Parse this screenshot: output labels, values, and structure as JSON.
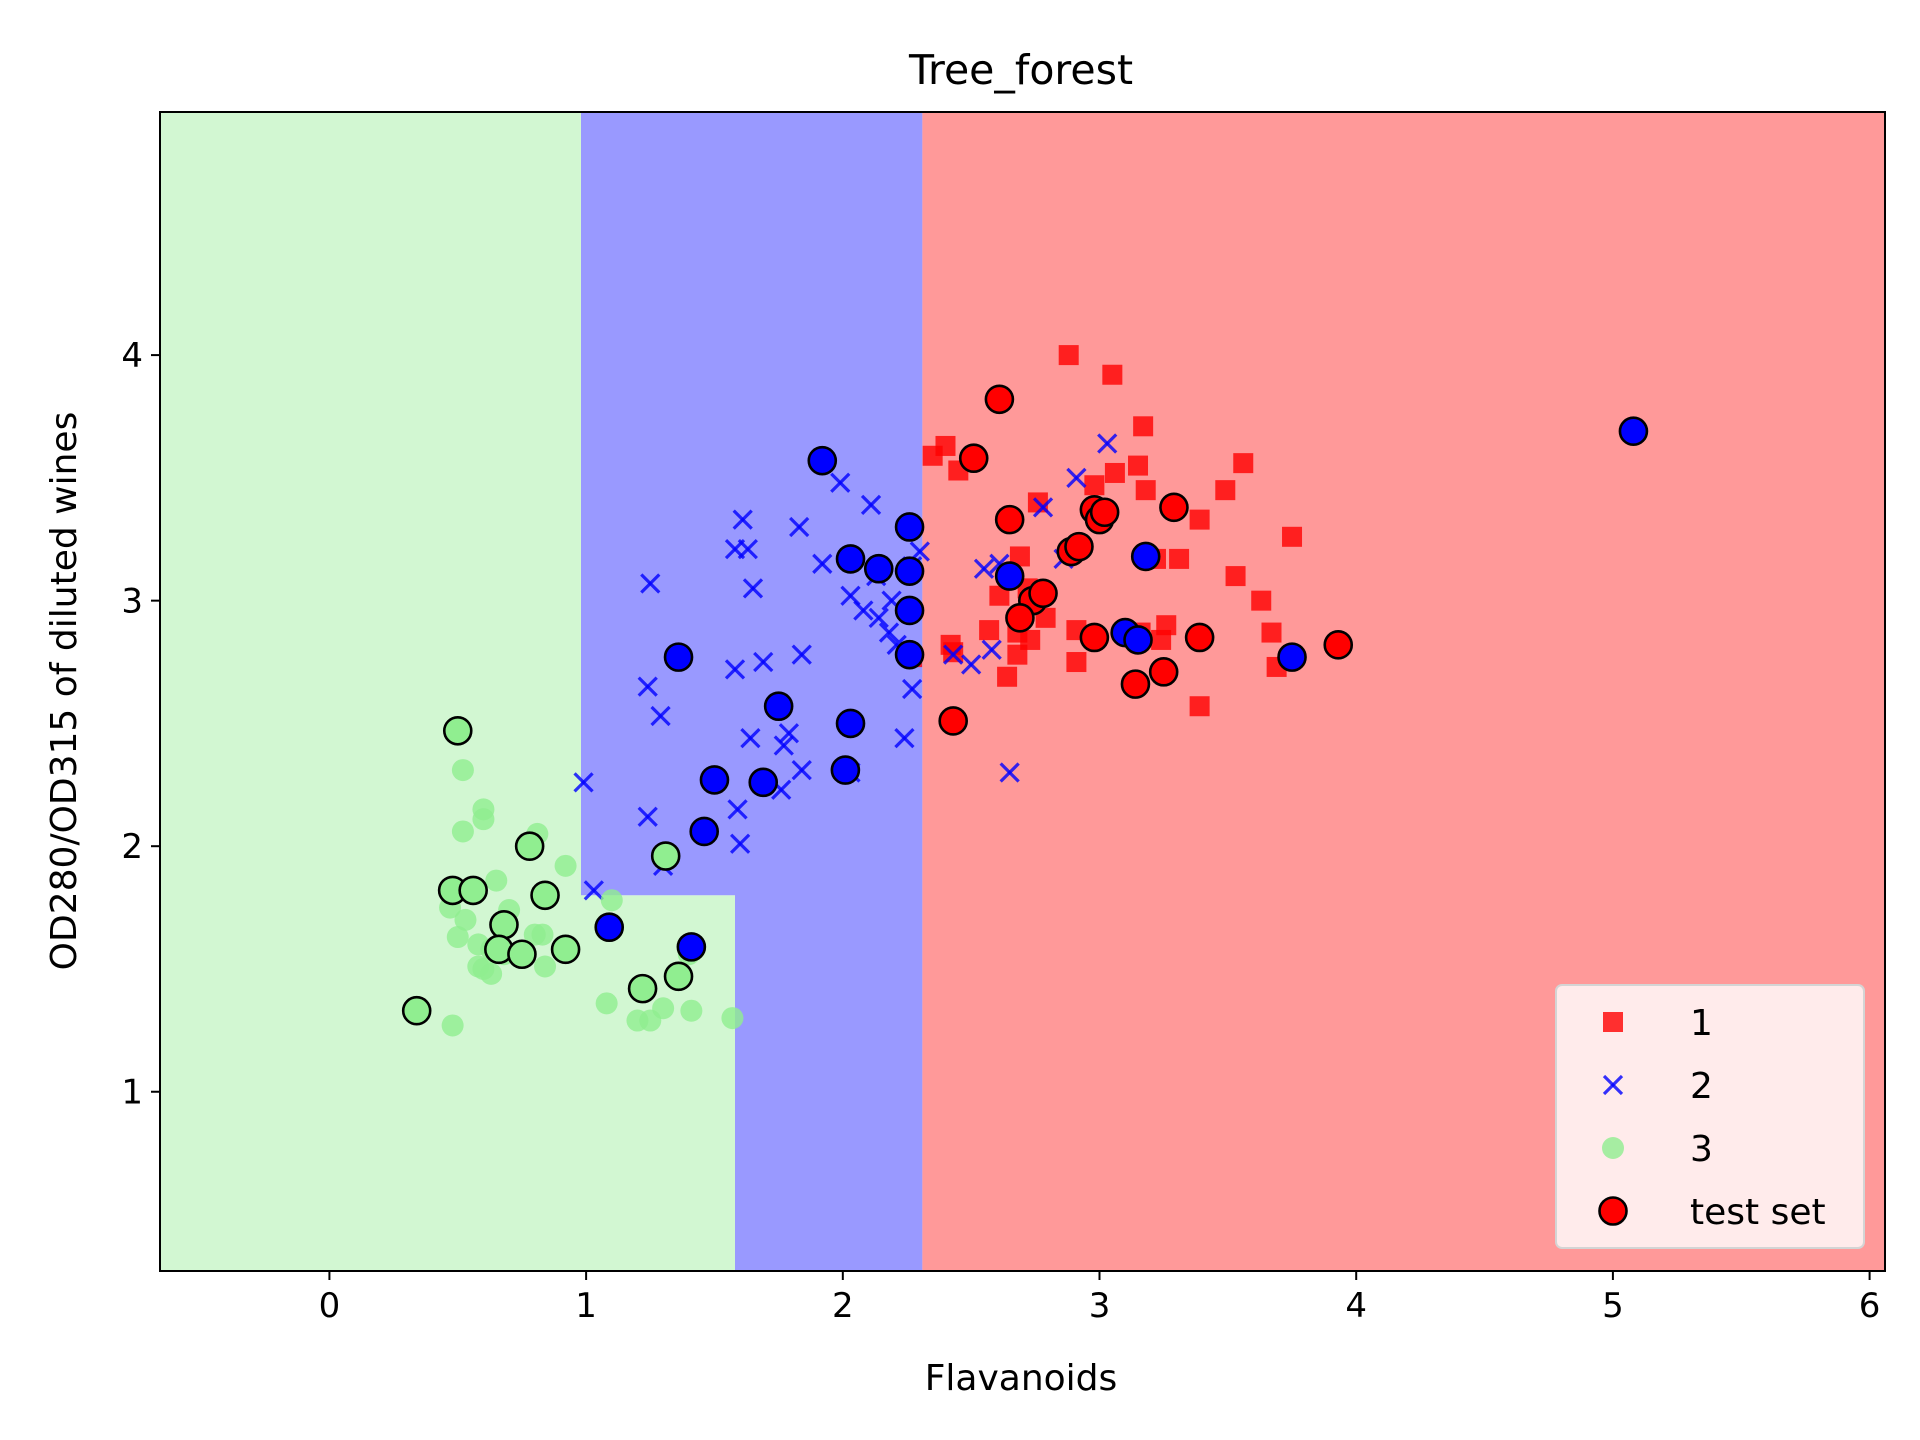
{
  "chart_data": {
    "type": "scatter",
    "title": "Tree_forest",
    "xlabel": "Flavanoids",
    "ylabel": "OD280/OD315 of diluted wines",
    "xlim": [
      -0.66,
      6.06
    ],
    "ylim": [
      0.27,
      4.99
    ],
    "xticks": [
      0,
      1,
      2,
      3,
      4,
      5,
      6
    ],
    "yticks": [
      1,
      2,
      3,
      4
    ],
    "grid": false,
    "legend_position": "bottom-right",
    "colors": {
      "class_1": "#ff0000",
      "class_2": "#0000ff",
      "class_3": "#90ee90",
      "region_1": "#ff9999",
      "region_2": "#9999ff",
      "region_3": "#d2f7d2",
      "test_set": "#ff0000"
    },
    "decision_regions": [
      {
        "class": "3",
        "polygon": [
          [
            -0.66,
            0.27
          ],
          [
            1.58,
            0.27
          ],
          [
            1.58,
            1.8
          ],
          [
            0.98,
            1.8
          ],
          [
            0.98,
            4.99
          ],
          [
            -0.66,
            4.99
          ]
        ]
      },
      {
        "class": "2",
        "polygon": [
          [
            1.58,
            0.27
          ],
          [
            2.31,
            0.27
          ],
          [
            2.31,
            4.99
          ],
          [
            0.98,
            4.99
          ],
          [
            0.98,
            1.8
          ],
          [
            1.58,
            1.8
          ]
        ]
      },
      {
        "class": "1",
        "polygon": [
          [
            2.31,
            0.27
          ],
          [
            6.06,
            0.27
          ],
          [
            6.06,
            4.99
          ],
          [
            2.31,
            4.99
          ]
        ]
      }
    ],
    "series": [
      {
        "name": "1",
        "marker": "square",
        "points": [
          [
            2.88,
            4.0
          ],
          [
            3.05,
            3.92
          ],
          [
            3.17,
            3.71
          ],
          [
            2.35,
            3.59
          ],
          [
            2.4,
            3.63
          ],
          [
            2.45,
            3.53
          ],
          [
            2.98,
            3.47
          ],
          [
            3.15,
            3.55
          ],
          [
            3.18,
            3.45
          ],
          [
            3.06,
            3.52
          ],
          [
            3.56,
            3.56
          ],
          [
            3.49,
            3.45
          ],
          [
            2.76,
            3.4
          ],
          [
            3.39,
            3.33
          ],
          [
            3.75,
            3.26
          ],
          [
            3.22,
            3.17
          ],
          [
            3.31,
            3.17
          ],
          [
            3.53,
            3.1
          ],
          [
            3.63,
            3.0
          ],
          [
            2.69,
            3.18
          ],
          [
            2.72,
            3.05
          ],
          [
            2.61,
            3.02
          ],
          [
            2.57,
            2.88
          ],
          [
            2.68,
            2.87
          ],
          [
            2.73,
            2.84
          ],
          [
            2.79,
            2.93
          ],
          [
            2.42,
            2.82
          ],
          [
            2.43,
            2.79
          ],
          [
            2.68,
            2.78
          ],
          [
            2.91,
            2.88
          ],
          [
            2.91,
            2.75
          ],
          [
            3.16,
            2.87
          ],
          [
            3.26,
            2.9
          ],
          [
            3.24,
            2.84
          ],
          [
            3.67,
            2.87
          ],
          [
            3.69,
            2.73
          ],
          [
            3.39,
            2.57
          ],
          [
            2.27,
            2.77
          ],
          [
            2.64,
            2.69
          ]
        ]
      },
      {
        "name": "2",
        "marker": "x",
        "points": [
          [
            3.03,
            3.64
          ],
          [
            2.91,
            3.5
          ],
          [
            1.99,
            3.48
          ],
          [
            2.11,
            3.39
          ],
          [
            2.78,
            3.38
          ],
          [
            1.61,
            3.33
          ],
          [
            1.58,
            3.21
          ],
          [
            1.63,
            3.21
          ],
          [
            1.83,
            3.3
          ],
          [
            2.3,
            3.2
          ],
          [
            1.92,
            3.15
          ],
          [
            2.27,
            3.14
          ],
          [
            2.55,
            3.13
          ],
          [
            2.61,
            3.15
          ],
          [
            2.86,
            3.17
          ],
          [
            2.13,
            3.1
          ],
          [
            1.25,
            3.07
          ],
          [
            1.65,
            3.05
          ],
          [
            2.19,
            3.0
          ],
          [
            2.03,
            3.02
          ],
          [
            2.08,
            2.96
          ],
          [
            2.14,
            2.93
          ],
          [
            2.18,
            2.87
          ],
          [
            2.21,
            2.82
          ],
          [
            1.84,
            2.78
          ],
          [
            1.69,
            2.75
          ],
          [
            1.58,
            2.72
          ],
          [
            2.43,
            2.78
          ],
          [
            2.5,
            2.74
          ],
          [
            2.58,
            2.8
          ],
          [
            2.99,
            2.85
          ],
          [
            1.24,
            2.65
          ],
          [
            1.29,
            2.53
          ],
          [
            2.27,
            2.64
          ],
          [
            1.64,
            2.44
          ],
          [
            1.79,
            2.46
          ],
          [
            1.77,
            2.41
          ],
          [
            2.24,
            2.44
          ],
          [
            1.84,
            2.31
          ],
          [
            2.03,
            2.3
          ],
          [
            2.65,
            2.3
          ],
          [
            1.76,
            2.23
          ],
          [
            1.59,
            2.15
          ],
          [
            1.24,
            2.12
          ],
          [
            1.6,
            2.01
          ],
          [
            0.99,
            2.26
          ],
          [
            1.03,
            1.82
          ],
          [
            1.3,
            1.92
          ]
        ]
      },
      {
        "name": "3",
        "marker": "circle",
        "points": [
          [
            0.52,
            2.31
          ],
          [
            0.6,
            2.15
          ],
          [
            0.6,
            2.11
          ],
          [
            0.52,
            2.06
          ],
          [
            0.81,
            2.05
          ],
          [
            0.92,
            1.92
          ],
          [
            0.65,
            1.86
          ],
          [
            0.47,
            1.75
          ],
          [
            0.53,
            1.7
          ],
          [
            0.7,
            1.74
          ],
          [
            0.58,
            1.6
          ],
          [
            0.63,
            1.58
          ],
          [
            0.8,
            1.64
          ],
          [
            0.83,
            1.64
          ],
          [
            0.5,
            1.63
          ],
          [
            0.58,
            1.51
          ],
          [
            0.6,
            1.5
          ],
          [
            0.63,
            1.48
          ],
          [
            0.84,
            1.51
          ],
          [
            0.68,
            1.56
          ],
          [
            1.1,
            1.78
          ],
          [
            1.08,
            1.36
          ],
          [
            1.2,
            1.29
          ],
          [
            1.25,
            1.29
          ],
          [
            1.3,
            1.34
          ],
          [
            1.41,
            1.33
          ],
          [
            1.57,
            1.3
          ],
          [
            0.48,
            1.27
          ],
          [
            1.4,
            1.56
          ]
        ]
      },
      {
        "name": "test set",
        "marker": "circle-outlined",
        "points": [
          {
            "x": 2.61,
            "y": 3.82,
            "class": "1"
          },
          {
            "x": 2.51,
            "y": 3.58,
            "class": "1"
          },
          {
            "x": 2.65,
            "y": 3.33,
            "class": "1"
          },
          {
            "x": 2.98,
            "y": 3.37,
            "class": "1"
          },
          {
            "x": 3.0,
            "y": 3.33,
            "class": "1"
          },
          {
            "x": 3.02,
            "y": 3.36,
            "class": "1"
          },
          {
            "x": 3.29,
            "y": 3.38,
            "class": "1"
          },
          {
            "x": 2.89,
            "y": 3.2,
            "class": "1"
          },
          {
            "x": 2.92,
            "y": 3.22,
            "class": "1"
          },
          {
            "x": 2.74,
            "y": 3.0,
            "class": "1"
          },
          {
            "x": 2.78,
            "y": 3.03,
            "class": "1"
          },
          {
            "x": 2.69,
            "y": 2.93,
            "class": "1"
          },
          {
            "x": 2.98,
            "y": 2.85,
            "class": "1"
          },
          {
            "x": 3.39,
            "y": 2.85,
            "class": "1"
          },
          {
            "x": 3.93,
            "y": 2.82,
            "class": "1"
          },
          {
            "x": 3.14,
            "y": 2.66,
            "class": "1"
          },
          {
            "x": 3.25,
            "y": 2.71,
            "class": "1"
          },
          {
            "x": 2.43,
            "y": 2.51,
            "class": "1"
          },
          {
            "x": 1.92,
            "y": 3.57,
            "class": "2"
          },
          {
            "x": 2.26,
            "y": 3.3,
            "class": "2"
          },
          {
            "x": 2.03,
            "y": 3.17,
            "class": "2"
          },
          {
            "x": 2.14,
            "y": 3.13,
            "class": "2"
          },
          {
            "x": 2.26,
            "y": 3.12,
            "class": "2"
          },
          {
            "x": 2.65,
            "y": 3.1,
            "class": "2"
          },
          {
            "x": 2.26,
            "y": 2.96,
            "class": "2"
          },
          {
            "x": 3.18,
            "y": 3.18,
            "class": "2"
          },
          {
            "x": 1.36,
            "y": 2.77,
            "class": "2"
          },
          {
            "x": 2.26,
            "y": 2.78,
            "class": "2"
          },
          {
            "x": 3.1,
            "y": 2.87,
            "class": "2"
          },
          {
            "x": 3.15,
            "y": 2.84,
            "class": "2"
          },
          {
            "x": 3.75,
            "y": 2.77,
            "class": "2"
          },
          {
            "x": 1.75,
            "y": 2.57,
            "class": "2"
          },
          {
            "x": 2.03,
            "y": 2.5,
            "class": "2"
          },
          {
            "x": 2.01,
            "y": 2.31,
            "class": "2"
          },
          {
            "x": 1.5,
            "y": 2.27,
            "class": "2"
          },
          {
            "x": 1.69,
            "y": 2.26,
            "class": "2"
          },
          {
            "x": 1.46,
            "y": 2.06,
            "class": "2"
          },
          {
            "x": 1.09,
            "y": 1.67,
            "class": "2"
          },
          {
            "x": 1.41,
            "y": 1.59,
            "class": "2"
          },
          {
            "x": 5.08,
            "y": 3.69,
            "class": "2"
          },
          {
            "x": 0.5,
            "y": 2.47,
            "class": "3"
          },
          {
            "x": 0.78,
            "y": 2.0,
            "class": "3"
          },
          {
            "x": 1.31,
            "y": 1.96,
            "class": "3"
          },
          {
            "x": 0.48,
            "y": 1.82,
            "class": "3"
          },
          {
            "x": 0.56,
            "y": 1.82,
            "class": "3"
          },
          {
            "x": 0.84,
            "y": 1.8,
            "class": "3"
          },
          {
            "x": 0.68,
            "y": 1.68,
            "class": "3"
          },
          {
            "x": 0.66,
            "y": 1.58,
            "class": "3"
          },
          {
            "x": 0.75,
            "y": 1.56,
            "class": "3"
          },
          {
            "x": 0.92,
            "y": 1.58,
            "class": "3"
          },
          {
            "x": 1.36,
            "y": 1.47,
            "class": "3"
          },
          {
            "x": 1.22,
            "y": 1.42,
            "class": "3"
          },
          {
            "x": 0.34,
            "y": 1.33,
            "class": "3"
          }
        ]
      }
    ],
    "legend": [
      {
        "label": "1",
        "marker": "square",
        "color": "#ff0000"
      },
      {
        "label": "2",
        "marker": "x",
        "color": "#0000ff"
      },
      {
        "label": "3",
        "marker": "circle",
        "color": "#90ee90"
      },
      {
        "label": "test set",
        "marker": "circle-outlined",
        "color": "#ff0000"
      }
    ]
  }
}
